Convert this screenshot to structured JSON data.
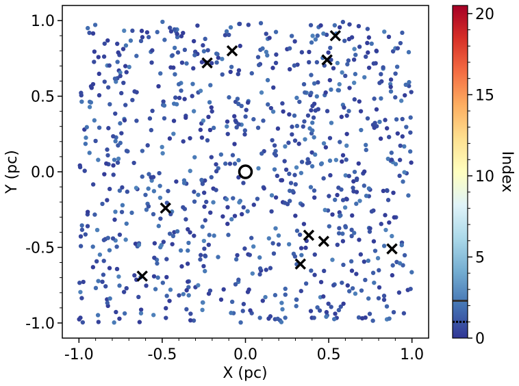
{
  "chart_data": {
    "type": "scatter",
    "title": "",
    "xlabel": "X (pc)",
    "ylabel": "Y (pc)",
    "xlim": [
      -1.1,
      1.1
    ],
    "ylim": [
      -1.1,
      1.1
    ],
    "xticks": [
      -1.0,
      -0.5,
      0.0,
      0.5,
      1.0
    ],
    "xtick_labels": [
      "-1.0",
      "-0.5",
      "0.0",
      "0.5",
      "1.0"
    ],
    "yticks": [
      -1.0,
      -0.5,
      0.0,
      0.5,
      1.0
    ],
    "ytick_labels": [
      "-1.0",
      "-0.5",
      "0.0",
      "0.5",
      "1.0"
    ],
    "grid": false,
    "points": {
      "count": 900,
      "x_range": [
        -1.0,
        1.0
      ],
      "y_range": [
        -1.0,
        1.0
      ],
      "color_value_range": [
        0.2,
        2.6
      ],
      "marker": "filled circle"
    },
    "cross_markers": [
      {
        "x": -0.23,
        "y": 0.72
      },
      {
        "x": -0.08,
        "y": 0.8
      },
      {
        "x": 0.54,
        "y": 0.9
      },
      {
        "x": 0.49,
        "y": 0.74
      },
      {
        "x": -0.48,
        "y": -0.24
      },
      {
        "x": 0.38,
        "y": -0.42
      },
      {
        "x": 0.47,
        "y": -0.46
      },
      {
        "x": 0.33,
        "y": -0.61
      },
      {
        "x": 0.88,
        "y": -0.51
      },
      {
        "x": -0.62,
        "y": -0.69
      }
    ],
    "center_marker": {
      "x": 0.0,
      "y": 0.0,
      "marker": "open circle"
    },
    "colorbar": {
      "label": "Index",
      "colormap": "RdYlBu_r",
      "range": [
        0,
        20.5
      ],
      "ticks": [
        0,
        5,
        10,
        15,
        20
      ],
      "tick_labels": [
        "0",
        "5",
        "10",
        "15",
        "20"
      ],
      "lines": [
        {
          "value": 2.3,
          "style": "solid"
        },
        {
          "value": 1.0,
          "style": "dotted"
        }
      ]
    }
  }
}
